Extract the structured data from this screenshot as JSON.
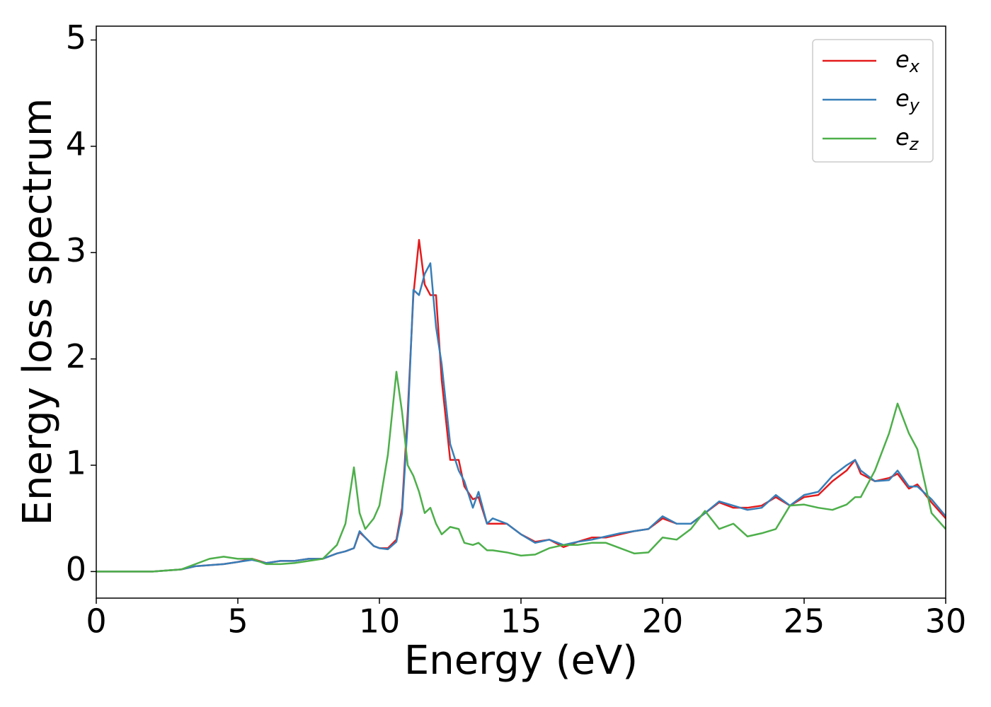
{
  "chart_data": {
    "type": "line",
    "xlabel": "Energy (eV)",
    "ylabel": "Energy loss spectrum",
    "x": [
      0,
      0.5,
      1,
      1.5,
      2,
      2.5,
      3,
      3.5,
      4,
      4.5,
      5,
      5.5,
      6,
      6.5,
      7,
      7.5,
      8,
      8.5,
      8.8,
      9.1,
      9.3,
      9.5,
      9.8,
      10,
      10.3,
      10.6,
      10.8,
      11,
      11.2,
      11.4,
      11.6,
      11.8,
      12,
      12.2,
      12.5,
      12.8,
      13,
      13.3,
      13.5,
      13.8,
      14,
      14.5,
      15,
      15.5,
      16,
      16.5,
      17,
      17.5,
      18,
      18.5,
      19,
      19.5,
      20,
      20.5,
      21,
      21.5,
      22,
      22.5,
      23,
      23.5,
      24,
      24.5,
      25,
      25.5,
      26,
      26.5,
      26.8,
      27,
      27.5,
      28,
      28.3,
      28.7,
      29,
      29.5,
      30
    ],
    "series": [
      {
        "name": "e",
        "subscript": "x",
        "color": "#e41a1c",
        "values": [
          0,
          0,
          0,
          0,
          0,
          0.01,
          0.02,
          0.05,
          0.06,
          0.07,
          0.09,
          0.12,
          0.08,
          0.1,
          0.1,
          0.12,
          0.12,
          0.17,
          0.19,
          0.22,
          0.37,
          0.32,
          0.24,
          0.22,
          0.22,
          0.3,
          0.6,
          1.5,
          2.6,
          3.12,
          2.7,
          2.6,
          2.6,
          1.8,
          1.05,
          1.05,
          0.8,
          0.68,
          0.7,
          0.45,
          0.45,
          0.45,
          0.35,
          0.28,
          0.3,
          0.23,
          0.28,
          0.32,
          0.32,
          0.35,
          0.38,
          0.4,
          0.5,
          0.45,
          0.45,
          0.55,
          0.65,
          0.6,
          0.6,
          0.62,
          0.7,
          0.62,
          0.7,
          0.72,
          0.85,
          0.95,
          1.05,
          0.92,
          0.85,
          0.88,
          0.92,
          0.78,
          0.82,
          0.65,
          0.5
        ]
      },
      {
        "name": "e",
        "subscript": "y",
        "color": "#377eb8",
        "values": [
          0,
          0,
          0,
          0,
          0,
          0.01,
          0.02,
          0.05,
          0.06,
          0.07,
          0.09,
          0.11,
          0.08,
          0.1,
          0.1,
          0.12,
          0.12,
          0.17,
          0.19,
          0.22,
          0.38,
          0.32,
          0.24,
          0.22,
          0.21,
          0.28,
          0.55,
          1.4,
          2.65,
          2.6,
          2.8,
          2.9,
          2.3,
          1.95,
          1.2,
          0.95,
          0.85,
          0.6,
          0.75,
          0.45,
          0.5,
          0.45,
          0.35,
          0.27,
          0.3,
          0.25,
          0.28,
          0.3,
          0.33,
          0.36,
          0.38,
          0.4,
          0.52,
          0.45,
          0.45,
          0.55,
          0.66,
          0.62,
          0.58,
          0.6,
          0.72,
          0.62,
          0.72,
          0.75,
          0.9,
          1.0,
          1.05,
          0.95,
          0.85,
          0.86,
          0.95,
          0.8,
          0.8,
          0.68,
          0.52
        ]
      },
      {
        "name": "e",
        "subscript": "z",
        "color": "#4daf4a",
        "values": [
          0,
          0,
          0,
          0,
          0,
          0.01,
          0.02,
          0.07,
          0.12,
          0.14,
          0.12,
          0.12,
          0.07,
          0.07,
          0.08,
          0.1,
          0.12,
          0.25,
          0.45,
          0.98,
          0.55,
          0.4,
          0.5,
          0.62,
          1.1,
          1.88,
          1.5,
          1.0,
          0.9,
          0.75,
          0.55,
          0.6,
          0.45,
          0.35,
          0.42,
          0.4,
          0.27,
          0.25,
          0.27,
          0.2,
          0.2,
          0.18,
          0.15,
          0.16,
          0.22,
          0.25,
          0.25,
          0.27,
          0.27,
          0.22,
          0.17,
          0.18,
          0.32,
          0.3,
          0.4,
          0.57,
          0.4,
          0.45,
          0.33,
          0.36,
          0.4,
          0.62,
          0.63,
          0.6,
          0.58,
          0.63,
          0.7,
          0.7,
          0.95,
          1.3,
          1.58,
          1.3,
          1.15,
          0.55,
          0.4
        ]
      }
    ],
    "xlim": [
      0,
      30
    ],
    "xticks": [
      0,
      5,
      10,
      15,
      20,
      25,
      30
    ],
    "ylim": [
      -0.25,
      5.13
    ],
    "yticks": [
      0,
      1,
      2,
      3,
      4,
      5
    ],
    "grid": false,
    "legend": "upper right"
  }
}
